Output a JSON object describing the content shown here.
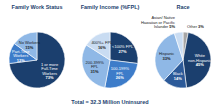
{
  "chart_data": [
    {
      "type": "pie",
      "title": "Family Work Status",
      "categories": [
        "1 or more Full-Time Workers",
        "Part-Time Workers",
        "No Workers"
      ],
      "values": [
        73,
        12,
        15
      ],
      "value_labels": [
        "73%",
        "12%",
        "15%"
      ],
      "colors": [
        "#1b3f6e",
        "#3d7cc9",
        "#8fb8e6"
      ],
      "data_labels": true
    },
    {
      "type": "pie",
      "title": "Family Income (%FPL)",
      "categories": [
        "<100% FPL",
        "100-199% FPL",
        "200-399% FPL",
        "400%+ FPL"
      ],
      "values": [
        27,
        26,
        31,
        16
      ],
      "value_labels": [
        "27%",
        "26%",
        "31%",
        "16%"
      ],
      "colors": [
        "#1b3f6e",
        "#3d7cc9",
        "#8fb8e6",
        "#c9dcf2"
      ],
      "data_labels": true
    },
    {
      "type": "pie",
      "title": "Race",
      "categories": [
        "Other",
        "White non-Hispanic",
        "Black",
        "Hispanic",
        "Asian/ Native Hawaiian or Pacific Islander"
      ],
      "values": [
        3,
        45,
        14,
        33,
        5
      ],
      "value_labels": [
        "3%",
        "45%",
        "14%",
        "33%",
        "5%"
      ],
      "colors": [
        "#a6a6a6",
        "#1b3f6e",
        "#2c5a99",
        "#8fb8e6",
        "#c9dcf2"
      ],
      "data_labels": true
    }
  ],
  "footer": "Total = 32.3 Million Uninsured"
}
